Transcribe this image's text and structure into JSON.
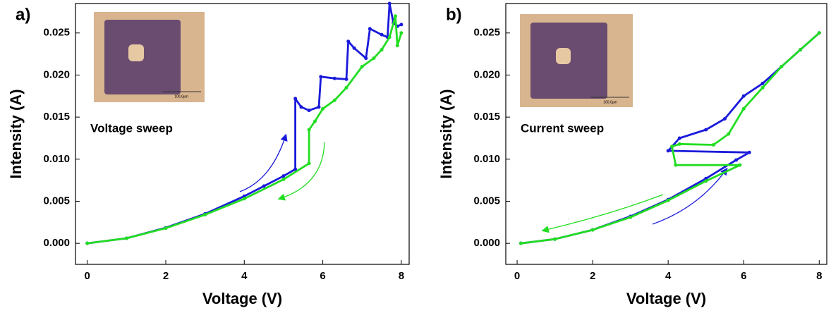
{
  "inset_scale": "100,0µm",
  "chart_data": [
    {
      "type": "line",
      "panel_label": "a)",
      "annotation": "Voltage sweep",
      "xlabel": "Voltage (V)",
      "ylabel": "Intensity (A)",
      "xlim": [
        -0.3,
        8.2
      ],
      "ylim": [
        -0.0025,
        0.0285
      ],
      "xticks": [
        0,
        2,
        4,
        6,
        8
      ],
      "yticks": [
        {
          "value": 0,
          "label": "0.000"
        },
        {
          "value": 0.005,
          "label": "0.005"
        },
        {
          "value": 0.01,
          "label": "0.010"
        },
        {
          "value": 0.015,
          "label": "0.015"
        },
        {
          "value": 0.02,
          "label": "0.020"
        },
        {
          "value": 0.025,
          "label": "0.025"
        }
      ],
      "series": [
        {
          "color": "#1a1adb",
          "x": [
            0,
            1,
            2,
            3,
            4,
            4.5,
            5,
            5.3,
            5.3,
            5.45,
            5.65,
            5.9,
            5.95,
            6.3,
            6.6,
            6.65,
            6.8,
            7.1,
            7.2,
            7.5,
            7.65,
            7.7,
            7.8,
            7.9,
            8
          ],
          "values": [
            0,
            0.0006,
            0.00185,
            0.0035,
            0.0056,
            0.0068,
            0.008,
            0.0088,
            0.0172,
            0.0162,
            0.0158,
            0.0162,
            0.0198,
            0.0196,
            0.0195,
            0.024,
            0.0232,
            0.022,
            0.0255,
            0.0248,
            0.0245,
            0.0285,
            0.0262,
            0.0258,
            0.026
          ]
        },
        {
          "color": "#22dd22",
          "x": [
            0,
            1,
            2,
            3,
            4,
            5,
            5.65,
            5.65,
            5.8,
            6,
            6.3,
            6.6,
            7,
            7.3,
            7.5,
            7.7,
            7.85,
            7.9,
            8
          ],
          "values": [
            0,
            0.0006,
            0.0018,
            0.0034,
            0.0053,
            0.0076,
            0.0095,
            0.0135,
            0.0145,
            0.016,
            0.017,
            0.0185,
            0.021,
            0.022,
            0.023,
            0.0245,
            0.027,
            0.0235,
            0.025
          ]
        }
      ]
    },
    {
      "type": "line",
      "panel_label": "b)",
      "annotation": "Current sweep",
      "xlabel": "Voltage (V)",
      "ylabel": "Intensity (A)",
      "xlim": [
        -0.3,
        8.2
      ],
      "ylim": [
        -0.0025,
        0.0285
      ],
      "xticks": [
        0,
        2,
        4,
        6,
        8
      ],
      "yticks": [
        {
          "value": 0,
          "label": "0.000"
        },
        {
          "value": 0.005,
          "label": "0.005"
        },
        {
          "value": 0.01,
          "label": "0.010"
        },
        {
          "value": 0.015,
          "label": "0.015"
        },
        {
          "value": 0.02,
          "label": "0.020"
        },
        {
          "value": 0.025,
          "label": "0.025"
        }
      ],
      "series": [
        {
          "color": "#1a1adb",
          "x": [
            0.1,
            1,
            2,
            3,
            4,
            5,
            5.8,
            6.15,
            4.0,
            4.3,
            5,
            5.5,
            6,
            6.5,
            7,
            7.5,
            8
          ],
          "values": [
            0,
            0.0005,
            0.0016,
            0.0032,
            0.0052,
            0.0077,
            0.0099,
            0.0108,
            0.011,
            0.0125,
            0.0135,
            0.0148,
            0.0175,
            0.019,
            0.021,
            0.023,
            0.025
          ]
        },
        {
          "color": "#22dd22",
          "x": [
            0.1,
            1,
            2,
            3,
            4,
            5,
            5.9,
            4.2,
            4.1,
            4.3,
            5.2,
            5.6,
            6,
            6.5,
            7,
            7.5,
            8
          ],
          "values": [
            0,
            0.0005,
            0.0016,
            0.0031,
            0.0051,
            0.0074,
            0.0093,
            0.0093,
            0.0115,
            0.0118,
            0.0117,
            0.013,
            0.016,
            0.0185,
            0.021,
            0.023,
            0.025
          ]
        }
      ]
    }
  ]
}
